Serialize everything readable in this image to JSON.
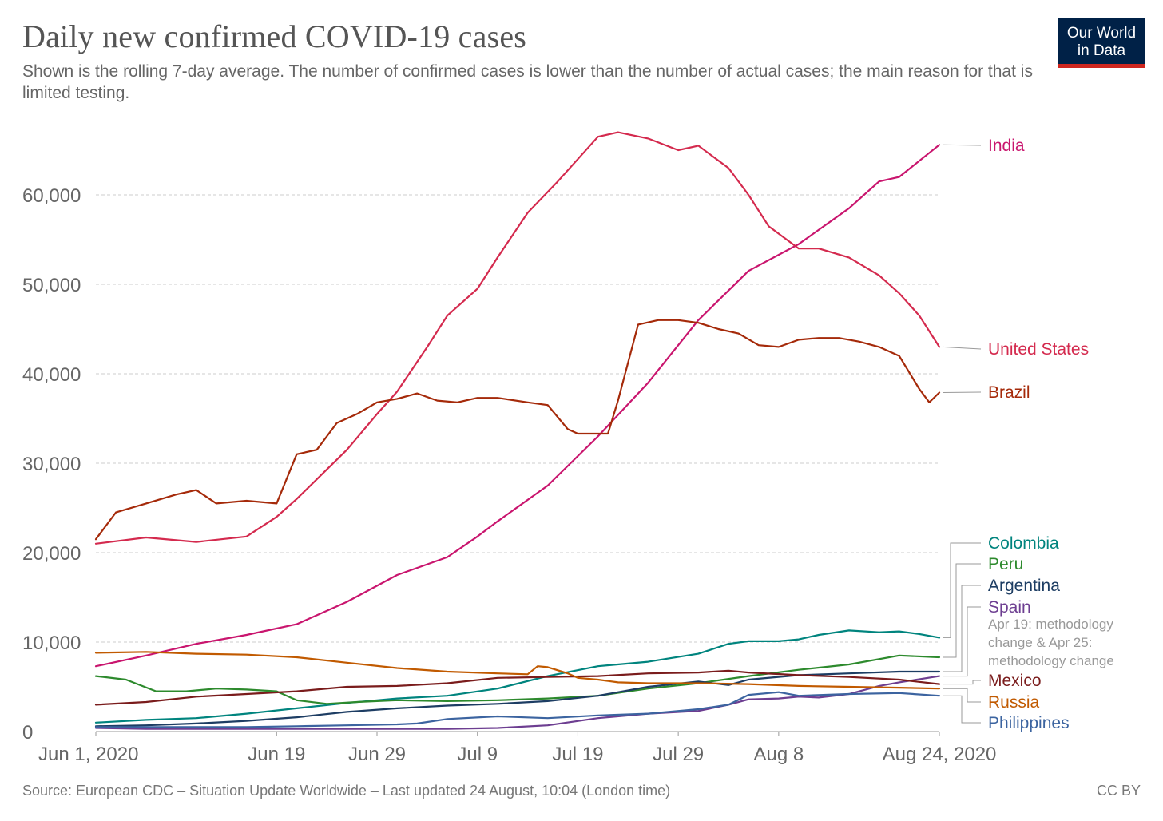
{
  "header": {
    "title": "Daily new confirmed COVID-19 cases",
    "subtitle": "Shown is the rolling 7-day average. The number of confirmed cases is lower than the number of actual cases; the main reason for that is limited testing."
  },
  "logo": {
    "line1": "Our World",
    "line2": "in Data",
    "bg_color": "#002147",
    "accent_color": "#ce261e"
  },
  "footer": {
    "source": "Source: European CDC – Situation Update Worldwide – Last updated 24 August, 10:04 (London time)",
    "license": "CC BY"
  },
  "chart_data": {
    "type": "line",
    "title": "Daily new confirmed COVID-19 cases",
    "xlabel": "",
    "ylabel": "",
    "x_day_range": [
      0,
      84
    ],
    "ylim": [
      0,
      67000
    ],
    "grid": true,
    "y_ticks": [
      0,
      10000,
      20000,
      30000,
      40000,
      50000,
      60000
    ],
    "y_tick_labels": [
      "0",
      "10,000",
      "20,000",
      "30,000",
      "40,000",
      "50,000",
      "60,000"
    ],
    "x_ticks": [
      0,
      18,
      28,
      38,
      48,
      58,
      68,
      84
    ],
    "x_tick_labels": [
      "Jun 1, 2020",
      "Jun 19",
      "Jun 29",
      "Jul 9",
      "Jul 19",
      "Jul 29",
      "Aug 8",
      "Aug 24, 2020"
    ],
    "series": [
      {
        "name": "India",
        "color": "#c9156e",
        "x": [
          0,
          5,
          10,
          15,
          20,
          25,
          30,
          35,
          38,
          40,
          45,
          50,
          55,
          60,
          65,
          70,
          75,
          78,
          80,
          84
        ],
        "y": [
          7300,
          8500,
          9800,
          10800,
          12000,
          14500,
          17500,
          19500,
          21800,
          23500,
          27500,
          33000,
          39000,
          46000,
          51500,
          54500,
          58500,
          61500,
          62000,
          65600
        ]
      },
      {
        "name": "United States",
        "color": "#d42a4e",
        "x": [
          0,
          5,
          10,
          15,
          18,
          20,
          25,
          28,
          30,
          33,
          35,
          38,
          40,
          43,
          46,
          50,
          52,
          55,
          58,
          60,
          63,
          65,
          67,
          70,
          72,
          75,
          78,
          80,
          82,
          84
        ],
        "y": [
          21000,
          21700,
          21200,
          21800,
          24000,
          26000,
          31500,
          35500,
          38000,
          43000,
          46500,
          49500,
          53000,
          58000,
          61500,
          66500,
          67000,
          66300,
          65000,
          65500,
          63000,
          60000,
          56500,
          54000,
          54000,
          53000,
          51000,
          49000,
          46500,
          43000
        ]
      },
      {
        "name": "Brazil",
        "color": "#a52a0a",
        "x": [
          0,
          2,
          5,
          8,
          10,
          12,
          15,
          18,
          20,
          22,
          24,
          26,
          28,
          30,
          32,
          34,
          36,
          38,
          40,
          43,
          45,
          47,
          48,
          50,
          51,
          52,
          54,
          56,
          58,
          60,
          62,
          64,
          66,
          68,
          70,
          72,
          74,
          76,
          78,
          80,
          82,
          83,
          84
        ],
        "y": [
          21500,
          24500,
          25500,
          26500,
          27000,
          25500,
          25800,
          25500,
          31000,
          31500,
          34500,
          35500,
          36800,
          37200,
          37800,
          37000,
          36800,
          37300,
          37300,
          36800,
          36500,
          33800,
          33300,
          33300,
          33300,
          37000,
          45500,
          46000,
          46000,
          45700,
          45000,
          44500,
          43200,
          43000,
          43800,
          44000,
          44000,
          43600,
          43000,
          42000,
          38300,
          36800,
          37900
        ]
      },
      {
        "name": "Colombia",
        "color": "#00847e",
        "x": [
          0,
          5,
          10,
          15,
          20,
          25,
          30,
          35,
          40,
          45,
          50,
          55,
          60,
          63,
          65,
          68,
          70,
          72,
          75,
          78,
          80,
          82,
          84
        ],
        "y": [
          1000,
          1300,
          1500,
          2000,
          2600,
          3200,
          3700,
          4000,
          4800,
          6200,
          7300,
          7800,
          8700,
          9800,
          10100,
          10100,
          10300,
          10800,
          11300,
          11100,
          11200,
          10900,
          10500
        ]
      },
      {
        "name": "Peru",
        "color": "#2d8a2d",
        "x": [
          0,
          3,
          6,
          9,
          12,
          15,
          18,
          20,
          23,
          26,
          30,
          35,
          40,
          45,
          50,
          55,
          60,
          65,
          70,
          75,
          80,
          84
        ],
        "y": [
          6200,
          5800,
          4500,
          4500,
          4800,
          4700,
          4500,
          3500,
          3100,
          3300,
          3500,
          3400,
          3500,
          3700,
          4000,
          4800,
          5400,
          6200,
          6900,
          7500,
          8500,
          8300
        ]
      },
      {
        "name": "Argentina",
        "color": "#1d3d63",
        "x": [
          0,
          5,
          10,
          15,
          20,
          25,
          30,
          35,
          40,
          45,
          50,
          55,
          60,
          63,
          65,
          70,
          75,
          80,
          84
        ],
        "y": [
          600,
          700,
          900,
          1200,
          1600,
          2200,
          2600,
          2900,
          3100,
          3400,
          4000,
          5000,
          5600,
          5200,
          5800,
          6300,
          6500,
          6700,
          6700
        ]
      },
      {
        "name": "Spain",
        "color": "#6d3e91",
        "x": [
          0,
          5,
          10,
          15,
          20,
          25,
          30,
          35,
          40,
          45,
          50,
          55,
          60,
          63,
          65,
          68,
          70,
          72,
          75,
          78,
          80,
          84
        ],
        "y": [
          400,
          300,
          300,
          300,
          300,
          300,
          300,
          300,
          400,
          700,
          1500,
          2000,
          2300,
          3000,
          3600,
          3700,
          3900,
          3800,
          4200,
          5100,
          5500,
          6200
        ]
      },
      {
        "name": "Mexico",
        "color": "#7a1c1c",
        "x": [
          0,
          5,
          10,
          15,
          20,
          25,
          30,
          35,
          40,
          45,
          50,
          55,
          60,
          63,
          65,
          70,
          75,
          80,
          84
        ],
        "y": [
          3000,
          3300,
          3900,
          4200,
          4500,
          5000,
          5100,
          5400,
          6000,
          6100,
          6200,
          6500,
          6600,
          6800,
          6600,
          6300,
          6100,
          5800,
          5300
        ]
      },
      {
        "name": "Russia",
        "color": "#c15a00",
        "x": [
          0,
          5,
          10,
          15,
          20,
          25,
          30,
          35,
          40,
          43,
          44,
          45,
          47,
          48,
          50,
          52,
          55,
          60,
          65,
          70,
          75,
          80,
          84
        ],
        "y": [
          8800,
          8900,
          8700,
          8600,
          8300,
          7700,
          7100,
          6700,
          6500,
          6400,
          7300,
          7200,
          6500,
          6000,
          5800,
          5500,
          5400,
          5400,
          5300,
          5100,
          5000,
          4900,
          4800
        ]
      },
      {
        "name": "Philippines",
        "color": "#3c64a0",
        "x": [
          0,
          5,
          10,
          15,
          20,
          25,
          30,
          32,
          35,
          40,
          45,
          50,
          55,
          60,
          63,
          65,
          68,
          70,
          75,
          80,
          84
        ],
        "y": [
          500,
          500,
          500,
          500,
          600,
          700,
          800,
          900,
          1400,
          1700,
          1500,
          1800,
          2000,
          2500,
          3000,
          4100,
          4400,
          4000,
          4200,
          4300,
          4000
        ]
      }
    ],
    "annotations": [
      {
        "series": "Spain",
        "text_lines": [
          "Apr 19: methodology",
          "change & Apr 25:",
          "methodology change"
        ]
      }
    ]
  }
}
